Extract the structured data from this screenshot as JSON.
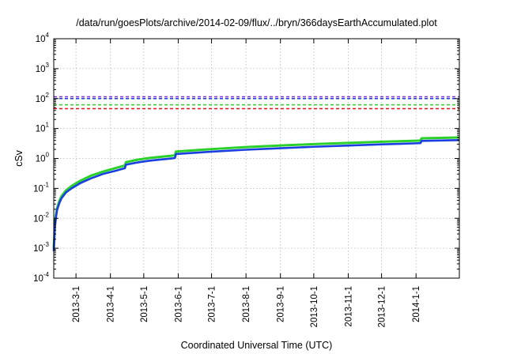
{
  "chart_data": {
    "type": "line",
    "title": "/data/run/goesPlots/archive/2014-02-09/flux/../bryn/366daysEarthAccumulated.plot",
    "xlabel": "Coordinated Universal Time (UTC)",
    "ylabel": "cSv",
    "yscale": "log",
    "ylim": [
      0.0001,
      10000
    ],
    "xlim": [
      "2013-02-09",
      "2014-02-09"
    ],
    "grid": true,
    "x_ticks": [
      "2013-3-1",
      "2013-4-1",
      "2013-5-1",
      "2013-6-1",
      "2013-7-1",
      "2013-8-1",
      "2013-9-1",
      "2013-10-1",
      "2013-11-1",
      "2013-12-1",
      "2014-1-1"
    ],
    "y_ticks": [
      {
        "base": "10",
        "exp": "-4",
        "value": 0.0001
      },
      {
        "base": "10",
        "exp": "-3",
        "value": 0.001
      },
      {
        "base": "10",
        "exp": "-2",
        "value": 0.01
      },
      {
        "base": "10",
        "exp": "-1",
        "value": 0.1
      },
      {
        "base": "10",
        "exp": "0",
        "value": 1
      },
      {
        "base": "10",
        "exp": "1",
        "value": 10
      },
      {
        "base": "10",
        "exp": "2",
        "value": 100
      },
      {
        "base": "10",
        "exp": "3",
        "value": 1000
      },
      {
        "base": "10",
        "exp": "4",
        "value": 10000
      }
    ],
    "reference_lines": [
      {
        "value": 115,
        "color": "#7b2fd6"
      },
      {
        "value": 100,
        "color": "#1a3fe0"
      },
      {
        "value": 62,
        "color": "#2bd02b"
      },
      {
        "value": 46,
        "color": "#e01515"
      }
    ],
    "series": [
      {
        "color": "#2bd02b",
        "x": [
          "2013-02-09",
          "2013-02-10",
          "2013-02-11",
          "2013-02-12",
          "2013-02-14",
          "2013-02-16",
          "2013-02-20",
          "2013-02-25",
          "2013-03-05",
          "2013-03-15",
          "2013-03-25",
          "2013-04-05",
          "2013-04-14",
          "2013-04-15",
          "2013-04-25",
          "2013-05-05",
          "2013-05-15",
          "2013-05-25",
          "2013-05-29",
          "2013-05-30",
          "2013-06-15",
          "2013-07-01",
          "2013-08-01",
          "2013-09-01",
          "2013-10-01",
          "2013-11-01",
          "2013-12-01",
          "2014-01-01",
          "2014-01-05",
          "2014-01-06",
          "2014-02-09"
        ],
        "y": [
          0.001,
          0.006,
          0.013,
          0.022,
          0.038,
          0.055,
          0.085,
          0.12,
          0.18,
          0.27,
          0.36,
          0.47,
          0.58,
          0.75,
          0.9,
          1.02,
          1.12,
          1.22,
          1.27,
          1.7,
          1.87,
          2.05,
          2.4,
          2.7,
          3.0,
          3.3,
          3.6,
          3.9,
          3.97,
          4.7,
          5.0
        ]
      },
      {
        "color": "#1a3fe0",
        "x": [
          "2013-02-09",
          "2013-02-10",
          "2013-02-11",
          "2013-02-12",
          "2013-02-14",
          "2013-02-16",
          "2013-02-20",
          "2013-02-25",
          "2013-03-05",
          "2013-03-15",
          "2013-03-25",
          "2013-04-05",
          "2013-04-14",
          "2013-04-15",
          "2013-04-25",
          "2013-05-05",
          "2013-05-15",
          "2013-05-25",
          "2013-05-29",
          "2013-05-30",
          "2013-06-15",
          "2013-07-01",
          "2013-08-01",
          "2013-09-01",
          "2013-10-01",
          "2013-11-01",
          "2013-12-01",
          "2014-01-01",
          "2014-01-05",
          "2014-01-06",
          "2014-02-09"
        ],
        "y": [
          0.0008,
          0.005,
          0.011,
          0.019,
          0.032,
          0.047,
          0.073,
          0.1,
          0.15,
          0.22,
          0.3,
          0.38,
          0.47,
          0.62,
          0.73,
          0.83,
          0.91,
          0.99,
          1.03,
          1.4,
          1.54,
          1.68,
          1.95,
          2.2,
          2.45,
          2.7,
          2.95,
          3.2,
          3.25,
          3.85,
          4.1
        ]
      }
    ]
  }
}
